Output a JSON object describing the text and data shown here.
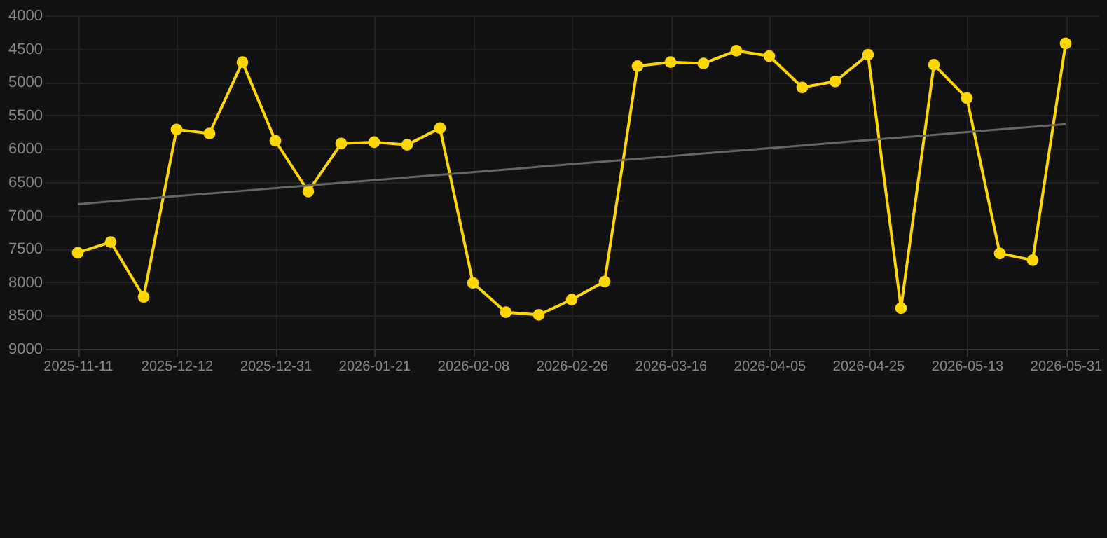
{
  "chart_data": {
    "type": "line",
    "categories": [
      "2025-11-11",
      null,
      null,
      "2025-12-12",
      null,
      null,
      "2025-12-31",
      null,
      null,
      "2026-01-21",
      null,
      null,
      "2026-02-08",
      null,
      null,
      "2026-02-26",
      null,
      null,
      "2026-03-16",
      null,
      null,
      "2026-04-05",
      null,
      null,
      "2026-04-25",
      null,
      null,
      "2026-05-13",
      null,
      null,
      "2026-05-31"
    ],
    "series": [
      {
        "color": "#ffd700",
        "marker": "circle",
        "values": [
          7560,
          7400,
          8220,
          5710,
          5770,
          4700,
          5880,
          6640,
          5920,
          5900,
          5940,
          5690,
          8010,
          8450,
          8490,
          8260,
          7990,
          4760,
          4700,
          4720,
          4530,
          4610,
          5080,
          4990,
          4590,
          8390,
          4740,
          5240,
          7570,
          7670,
          4420
        ]
      },
      {
        "type": "line",
        "color": "#666666",
        "marker": "none",
        "values": [
          6830,
          6790,
          6750,
          6710,
          6670,
          6630,
          6590,
          6550,
          6510,
          6470,
          6430,
          6390,
          6350,
          6310,
          6270,
          6230,
          6190,
          6150,
          6110,
          6070,
          6030,
          5990,
          5950,
          5910,
          5870,
          5830,
          5790,
          5750,
          5710,
          5670,
          5630
        ]
      }
    ],
    "ylim": [
      9000,
      4000
    ],
    "yticks": [
      4000,
      4500,
      5000,
      5500,
      6000,
      6500,
      7000,
      7500,
      8000,
      8500,
      9000
    ],
    "grid": true
  }
}
